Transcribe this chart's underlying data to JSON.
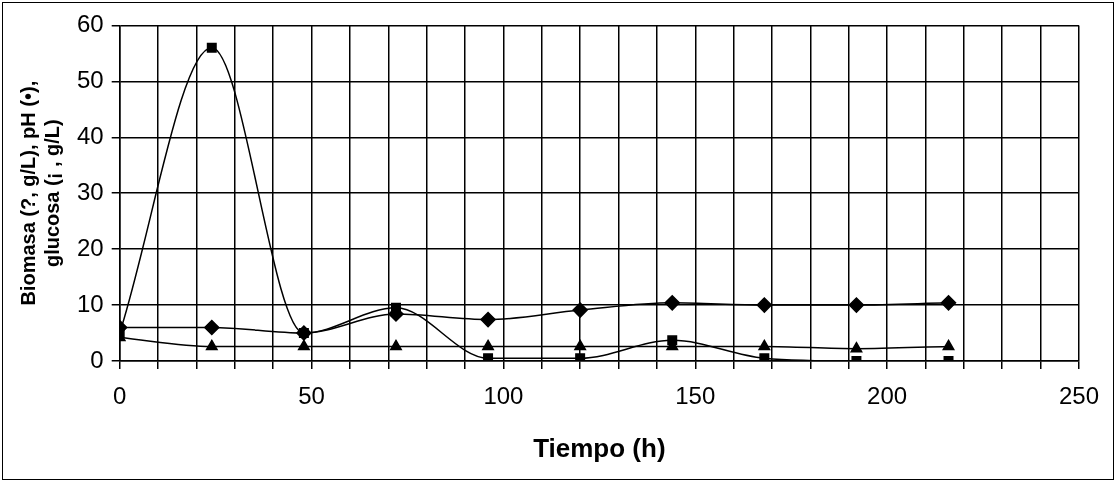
{
  "chart_data": {
    "type": "line",
    "xlabel": "Tiempo (h)",
    "ylabel": "Biomasa (?, g/L), pH (•),\nglucosa (¡ , g/L)",
    "x": [
      0,
      24,
      48,
      72,
      96,
      120,
      144,
      168,
      192,
      216
    ],
    "series": [
      {
        "color": "#000000",
        "marker": "square",
        "values": [
          5,
          56,
          5,
          9.5,
          0.5,
          0.5,
          3.7,
          0.5,
          0,
          0
        ]
      },
      {
        "color": "#000000",
        "marker": "diamond",
        "values": [
          6,
          6,
          5,
          8.4,
          7.4,
          9.1,
          10.4,
          10,
          10,
          10.4
        ]
      },
      {
        "color": "#000000",
        "marker": "triangle",
        "values": [
          4.2,
          2.6,
          2.6,
          2.6,
          2.6,
          2.6,
          2.6,
          2.6,
          2.2,
          2.6
        ]
      }
    ],
    "xlim": [
      0,
      250
    ],
    "ylim": [
      0,
      60
    ],
    "xticks": [
      0,
      {
        "value": 10,
        "label": null
      },
      {
        "value": 20,
        "label": null
      },
      {
        "value": 30,
        "label": null
      },
      {
        "value": 40,
        "label": null
      },
      50,
      {
        "value": 60,
        "label": null
      },
      {
        "value": 70,
        "label": null
      },
      {
        "value": 80,
        "label": null
      },
      {
        "value": 90,
        "label": null
      },
      100,
      {
        "value": 110,
        "label": null
      },
      {
        "value": 120,
        "label": null
      },
      {
        "value": 130,
        "label": null
      },
      {
        "value": 140,
        "label": null
      },
      150,
      {
        "value": 160,
        "label": null
      },
      {
        "value": 170,
        "label": null
      },
      {
        "value": 180,
        "label": null
      },
      {
        "value": 190,
        "label": null
      },
      200,
      {
        "value": 210,
        "label": null
      },
      {
        "value": 220,
        "label": null
      },
      {
        "value": 230,
        "label": null
      },
      {
        "value": 240,
        "label": null
      },
      250
    ],
    "yticks": [
      0,
      10,
      20,
      30,
      40,
      50,
      60
    ],
    "grid": true,
    "legend": false,
    "line_style": "solid"
  }
}
